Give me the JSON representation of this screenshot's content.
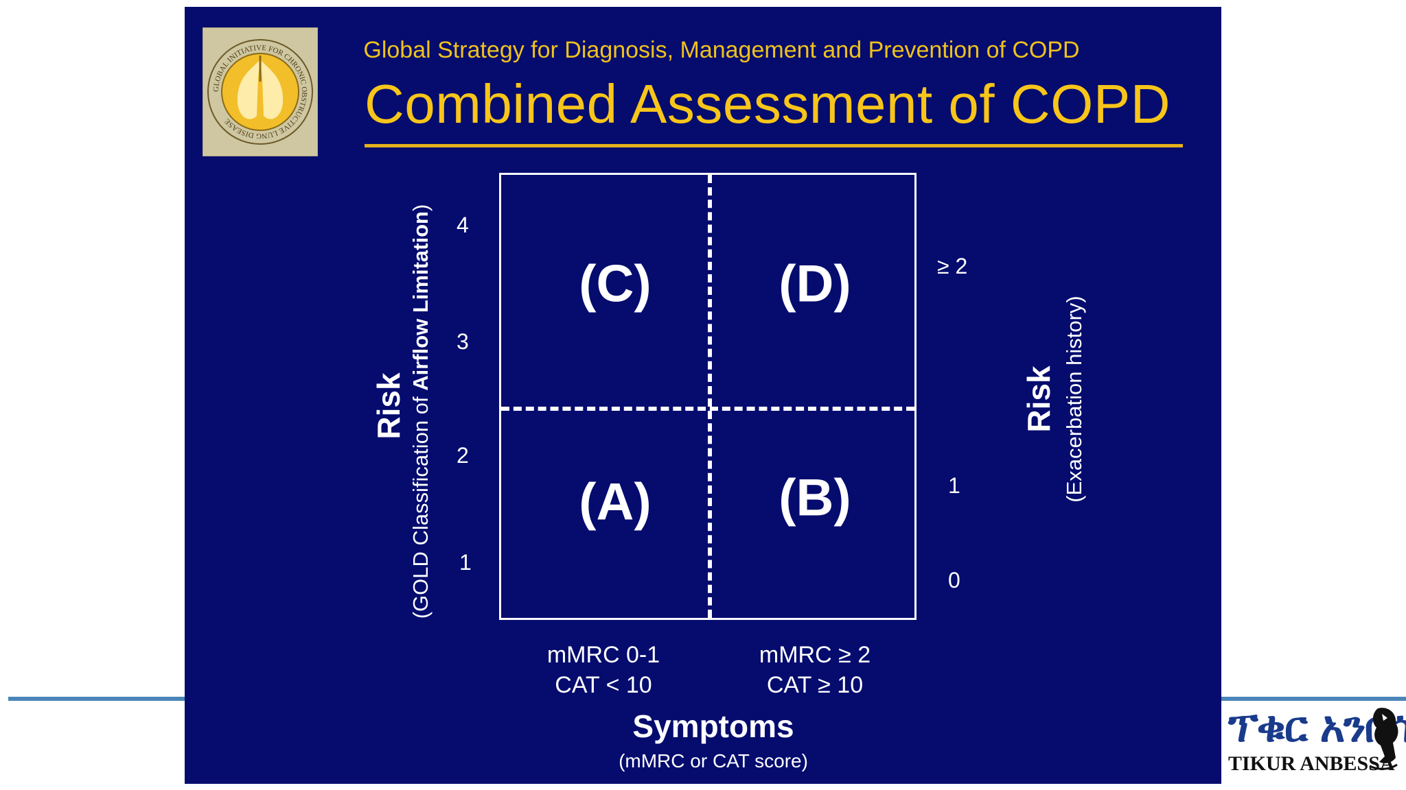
{
  "slide": {
    "subtitle": "Global Strategy for Diagnosis, Management and Prevention of COPD",
    "title": "Combined Assessment of COPD",
    "seal_text": "GLOBAL INITIATIVE FOR CHRONIC OBSTRUCTIVE LUNG DISEASE"
  },
  "left_axis": {
    "label": "Risk",
    "sub_prefix": "(GOLD Classification of ",
    "sub_bold": "Airflow Limitation",
    "sub_suffix": ")",
    "ticks": [
      "4",
      "3",
      "2",
      "1"
    ]
  },
  "right_axis": {
    "label": "Risk",
    "sub": "(Exacerbation history)",
    "ticks": [
      "≥ 2",
      "1",
      "0"
    ]
  },
  "quadrants": {
    "c": "(C)",
    "d": "(D)",
    "a": "(A)",
    "b": "(B)"
  },
  "bottom_axis": {
    "left_line1": "mMRC 0-1",
    "left_line2": "CAT < 10",
    "right_line1": "mMRC ≥ 2",
    "right_line2": "CAT ≥ 10",
    "title": "Symptoms",
    "sub": "(mMRC or CAT score)"
  },
  "channel_logo": {
    "amharic": "ፕቁር አንበሳ",
    "latin": "TIKUR ANBESSA"
  },
  "colors": {
    "slide_bg": "#050c6e",
    "title_gold": "#f8c51a",
    "rule_blue": "#4a86b8"
  }
}
